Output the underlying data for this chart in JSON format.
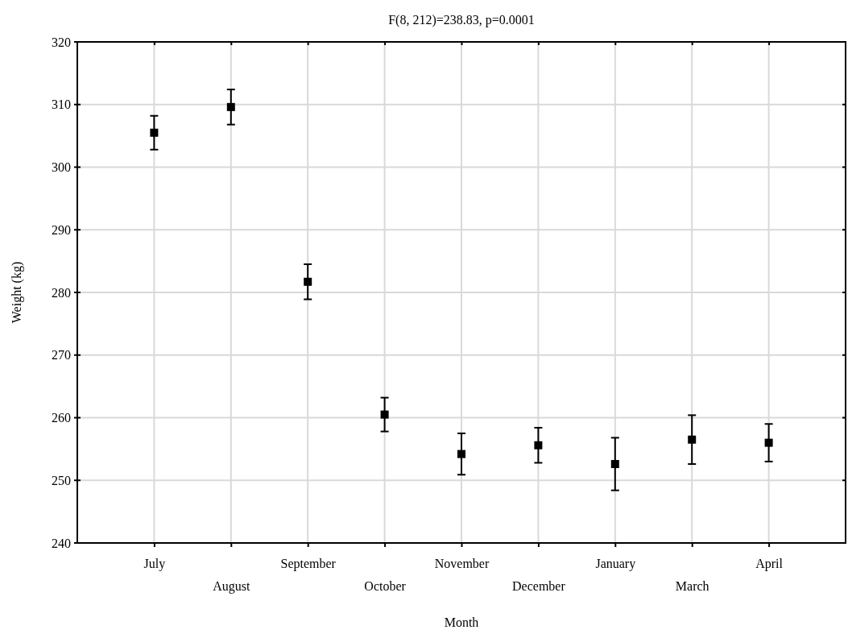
{
  "chart_data": {
    "type": "scatter",
    "title": "F(8, 212)=238.83, p=0.0001",
    "xlabel": "Month",
    "ylabel": "Weight (kg)",
    "categories": [
      "July",
      "August",
      "September",
      "October",
      "November",
      "December",
      "January",
      "March",
      "April"
    ],
    "values": [
      305.5,
      309.6,
      281.7,
      260.5,
      254.2,
      255.6,
      252.6,
      256.5,
      256.0
    ],
    "errors": [
      2.7,
      2.8,
      2.8,
      2.7,
      3.3,
      2.8,
      4.2,
      3.9,
      3.0
    ],
    "color": "#000000",
    "marker": "square",
    "grid": true,
    "ylim": [
      240,
      320
    ],
    "yticks": [
      240,
      250,
      260,
      270,
      280,
      290,
      300,
      310,
      320
    ]
  }
}
